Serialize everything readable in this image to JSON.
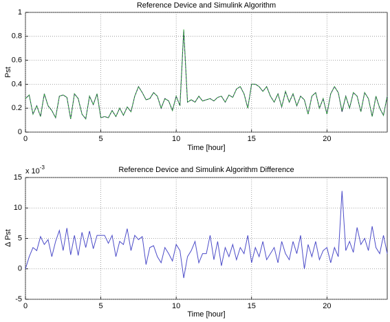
{
  "chart_data": [
    {
      "type": "line",
      "title": "Reference Device and Simulink Algorithm",
      "xlabel": "Time [hour]",
      "ylabel": "Pst",
      "xlim": [
        0,
        24
      ],
      "xticks": [
        0,
        5,
        10,
        15,
        20
      ],
      "ylim": [
        0,
        1
      ],
      "yticks": [
        0,
        0.2,
        0.4,
        0.6,
        0.8,
        1
      ],
      "grid": true,
      "x": [
        0,
        0.25,
        0.5,
        0.75,
        1,
        1.25,
        1.5,
        1.75,
        2,
        2.25,
        2.5,
        2.75,
        3,
        3.25,
        3.5,
        3.75,
        4,
        4.25,
        4.5,
        4.75,
        5,
        5.25,
        5.5,
        5.75,
        6,
        6.25,
        6.5,
        6.75,
        7,
        7.25,
        7.5,
        7.75,
        8,
        8.25,
        8.5,
        8.75,
        9,
        9.25,
        9.5,
        9.75,
        10,
        10.25,
        10.5,
        10.75,
        11,
        11.25,
        11.5,
        11.75,
        12,
        12.25,
        12.5,
        12.75,
        13,
        13.25,
        13.5,
        13.75,
        14,
        14.25,
        14.5,
        14.75,
        15,
        15.25,
        15.5,
        15.75,
        16,
        16.25,
        16.5,
        16.75,
        17,
        17.25,
        17.5,
        17.75,
        18,
        18.25,
        18.5,
        18.75,
        19,
        19.25,
        19.5,
        19.75,
        20,
        20.25,
        20.5,
        20.75,
        21,
        21.25,
        21.5,
        21.75,
        22,
        22.25,
        22.5,
        22.75,
        23,
        23.25,
        23.5,
        23.75,
        24
      ],
      "series": [
        {
          "color": "#1a2a4a",
          "dash": false,
          "values": [
            0.28,
            0.31,
            0.15,
            0.22,
            0.13,
            0.32,
            0.22,
            0.18,
            0.12,
            0.3,
            0.31,
            0.29,
            0.11,
            0.32,
            0.28,
            0.15,
            0.11,
            0.3,
            0.23,
            0.32,
            0.12,
            0.13,
            0.12,
            0.18,
            0.13,
            0.2,
            0.14,
            0.21,
            0.17,
            0.3,
            0.38,
            0.33,
            0.27,
            0.28,
            0.33,
            0.3,
            0.2,
            0.28,
            0.26,
            0.18,
            0.3,
            0.22,
            0.85,
            0.25,
            0.27,
            0.25,
            0.3,
            0.26,
            0.27,
            0.28,
            0.26,
            0.29,
            0.3,
            0.25,
            0.31,
            0.29,
            0.36,
            0.38,
            0.32,
            0.2,
            0.4,
            0.4,
            0.38,
            0.34,
            0.38,
            0.3,
            0.25,
            0.32,
            0.21,
            0.34,
            0.25,
            0.32,
            0.22,
            0.3,
            0.27,
            0.15,
            0.3,
            0.33,
            0.2,
            0.28,
            0.15,
            0.32,
            0.38,
            0.33,
            0.17,
            0.3,
            0.2,
            0.33,
            0.3,
            0.17,
            0.33,
            0.28,
            0.13,
            0.3,
            0.2,
            0.14,
            0.3
          ]
        },
        {
          "color": "#3cb043",
          "dash": true,
          "values": [
            0.28,
            0.31,
            0.15,
            0.22,
            0.13,
            0.32,
            0.22,
            0.18,
            0.12,
            0.3,
            0.31,
            0.29,
            0.11,
            0.32,
            0.28,
            0.15,
            0.11,
            0.3,
            0.23,
            0.32,
            0.12,
            0.13,
            0.12,
            0.18,
            0.13,
            0.2,
            0.14,
            0.21,
            0.17,
            0.3,
            0.38,
            0.33,
            0.27,
            0.28,
            0.33,
            0.3,
            0.2,
            0.28,
            0.26,
            0.18,
            0.3,
            0.22,
            0.86,
            0.25,
            0.27,
            0.25,
            0.3,
            0.26,
            0.27,
            0.28,
            0.26,
            0.29,
            0.3,
            0.25,
            0.31,
            0.29,
            0.36,
            0.38,
            0.32,
            0.2,
            0.4,
            0.4,
            0.38,
            0.34,
            0.38,
            0.3,
            0.25,
            0.32,
            0.21,
            0.34,
            0.25,
            0.32,
            0.22,
            0.3,
            0.27,
            0.15,
            0.3,
            0.33,
            0.2,
            0.28,
            0.15,
            0.32,
            0.38,
            0.33,
            0.18,
            0.3,
            0.2,
            0.33,
            0.3,
            0.17,
            0.33,
            0.28,
            0.13,
            0.3,
            0.2,
            0.14,
            0.3
          ]
        }
      ]
    },
    {
      "type": "line",
      "title": "Reference Device and Simulink Algorithm Difference",
      "xlabel": "Time [hour]",
      "ylabel": "Δ Pst",
      "yscale_base": "x 10",
      "yscale_exponent": "-3",
      "xlim": [
        0,
        24
      ],
      "xticks": [
        0,
        5,
        10,
        15,
        20
      ],
      "ylim": [
        -5,
        15
      ],
      "yticks": [
        -5,
        0,
        5,
        10,
        15
      ],
      "grid": true,
      "x": [
        0,
        0.25,
        0.5,
        0.75,
        1,
        1.25,
        1.5,
        1.75,
        2,
        2.25,
        2.5,
        2.75,
        3,
        3.25,
        3.5,
        3.75,
        4,
        4.25,
        4.5,
        4.75,
        5,
        5.25,
        5.5,
        5.75,
        6,
        6.25,
        6.5,
        6.75,
        7,
        7.25,
        7.5,
        7.75,
        8,
        8.25,
        8.5,
        8.75,
        9,
        9.25,
        9.5,
        9.75,
        10,
        10.25,
        10.5,
        10.75,
        11,
        11.25,
        11.5,
        11.75,
        12,
        12.25,
        12.5,
        12.75,
        13,
        13.25,
        13.5,
        13.75,
        14,
        14.25,
        14.5,
        14.75,
        15,
        15.25,
        15.5,
        15.75,
        16,
        16.25,
        16.5,
        16.75,
        17,
        17.25,
        17.5,
        17.75,
        18,
        18.25,
        18.5,
        18.75,
        19,
        19.25,
        19.5,
        19.75,
        20,
        20.25,
        20.5,
        20.75,
        21,
        21.25,
        21.5,
        21.75,
        22,
        22.25,
        22.5,
        22.75,
        23,
        23.25,
        23.5,
        23.75,
        24
      ],
      "series": [
        {
          "color": "#4b4bc8",
          "dash": false,
          "values": [
            0,
            2,
            3.5,
            3,
            5.3,
            4,
            4.8,
            2,
            4.5,
            6.3,
            3,
            6.7,
            2.3,
            5.5,
            2.2,
            6,
            3.5,
            6.2,
            3.3,
            5.5,
            5.5,
            5.5,
            4.2,
            5.5,
            2,
            4.5,
            4,
            6.6,
            3,
            5.5,
            4.8,
            5.3,
            0.7,
            3.5,
            3.8,
            2,
            1,
            3.5,
            2.5,
            1.3,
            4,
            3,
            -1.5,
            2,
            3,
            4.5,
            1,
            2.5,
            2.5,
            5.5,
            1.5,
            4.5,
            0.5,
            3.5,
            2,
            4,
            1.5,
            3.5,
            2.5,
            5.5,
            1,
            3.5,
            2,
            4.5,
            1.5,
            2.5,
            3.5,
            1,
            4.5,
            2.5,
            1.5,
            4.5,
            2.5,
            5.5,
            0,
            4,
            2,
            4.5,
            1.5,
            3,
            3.5,
            1,
            3.5,
            2,
            12.8,
            3,
            4.5,
            2.7,
            6.8,
            4,
            5,
            3,
            7,
            3.5,
            2.5,
            5.5,
            2.5
          ]
        }
      ]
    }
  ]
}
